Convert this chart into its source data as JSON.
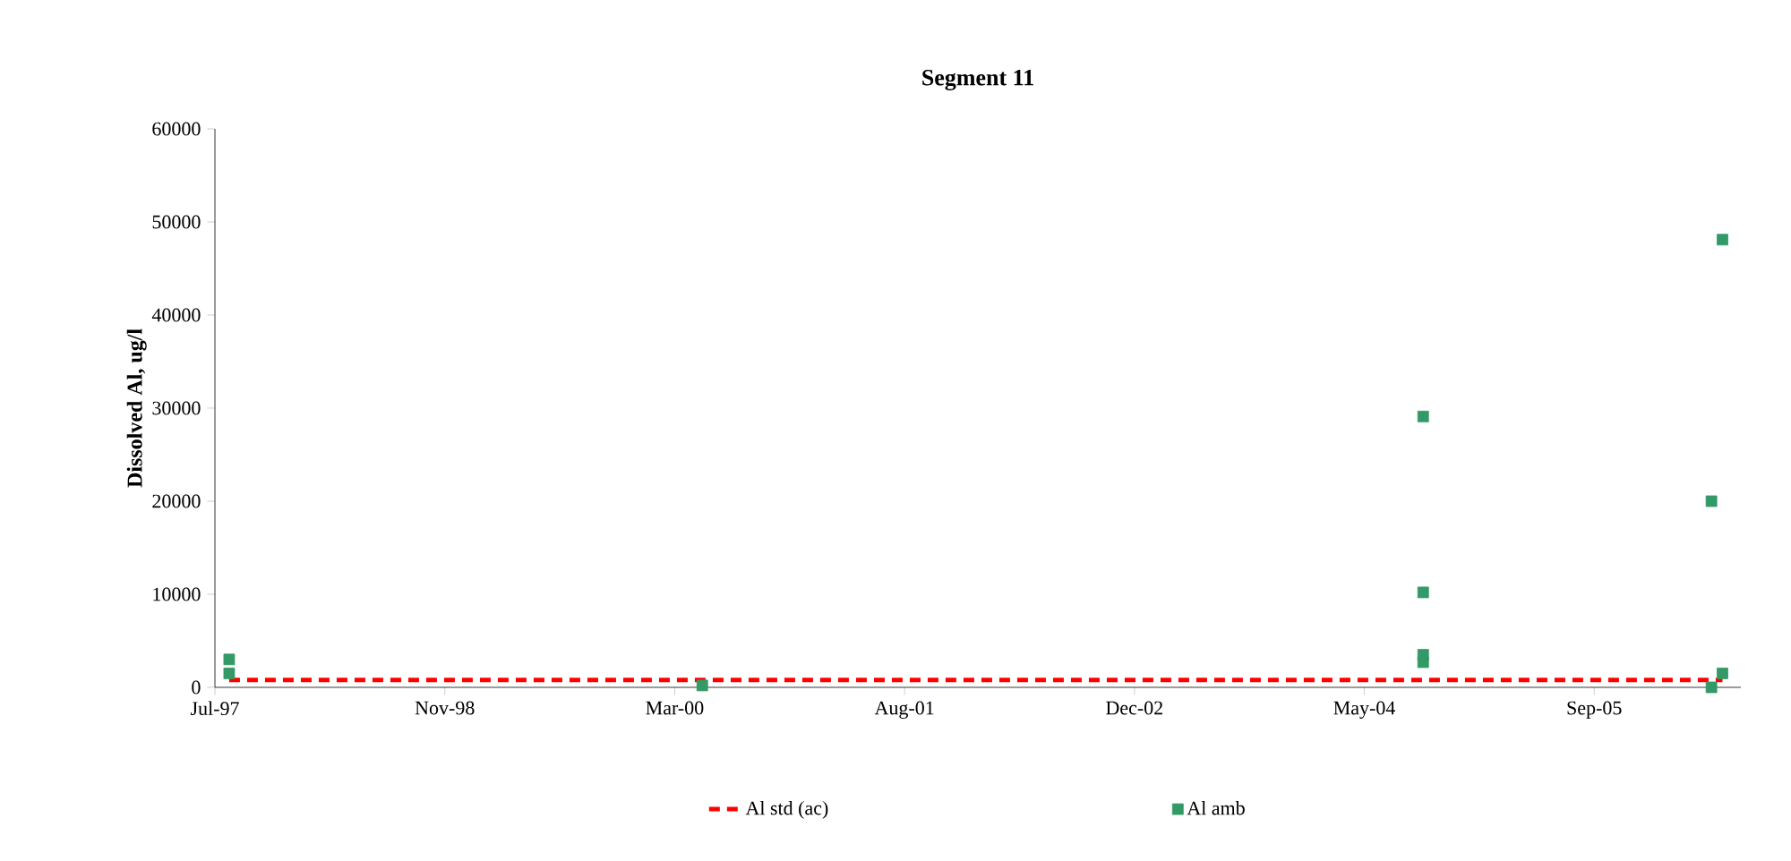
{
  "chart_data": {
    "type": "scatter",
    "title": "Segment 11",
    "ylabel": "Dissolved Al, ug/l",
    "xlim": [
      "1997-07-01",
      "2006-08-02"
    ],
    "xticks": [
      {
        "value": "1997-07-01",
        "label": "Jul-97"
      },
      {
        "value": "1998-11-13",
        "label": "Nov-98"
      },
      {
        "value": "2000-03-27",
        "label": "Mar-00"
      },
      {
        "value": "2001-08-09",
        "label": "Aug-01"
      },
      {
        "value": "2002-12-22",
        "label": "Dec-02"
      },
      {
        "value": "2004-05-05",
        "label": "May-04"
      },
      {
        "value": "2005-09-17",
        "label": "Sep-05"
      }
    ],
    "ylim": [
      0,
      60000
    ],
    "yticks": [
      0,
      10000,
      20000,
      30000,
      40000,
      50000,
      60000
    ],
    "grid": false,
    "legend": "bottom",
    "series": [
      {
        "name": "Al std (ac)",
        "type": "line",
        "color": "#ff0000",
        "line_style": "dotted",
        "marker": "none",
        "x": [
          "1997-08-01",
          "2006-06-23"
        ],
        "values": [
          800,
          800
        ]
      },
      {
        "name": "Al amb",
        "color": "#339966",
        "marker": "square",
        "x": [
          "1997-08-01",
          "1997-08-01",
          "2000-05-26",
          "2004-09-10",
          "2004-09-10",
          "2004-09-10",
          "2004-09-10",
          "2006-05-30",
          "2006-05-30",
          "2006-06-23",
          "2006-06-23"
        ],
        "values": [
          3000,
          1500,
          200,
          29100,
          10200,
          3500,
          2700,
          20000,
          0,
          48100,
          1500
        ]
      }
    ]
  }
}
